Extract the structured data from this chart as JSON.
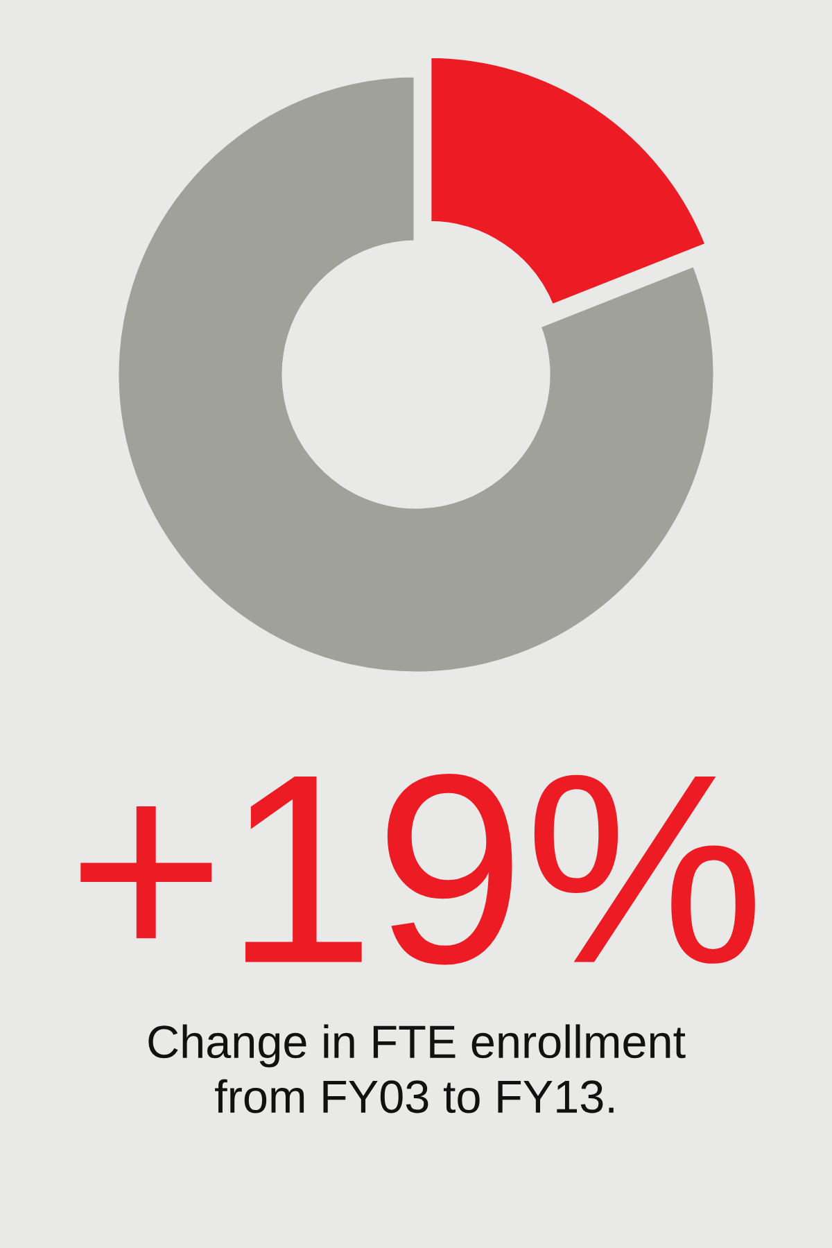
{
  "chart_data": {
    "type": "donut",
    "categories": [
      null,
      null
    ],
    "values": [
      19,
      81
    ],
    "colors": [
      "#ed1c24",
      "#a1a19b"
    ],
    "annotations": [
      "+19%",
      "Change in FTE enrollment\nfrom FY03 to FY13."
    ]
  }
}
